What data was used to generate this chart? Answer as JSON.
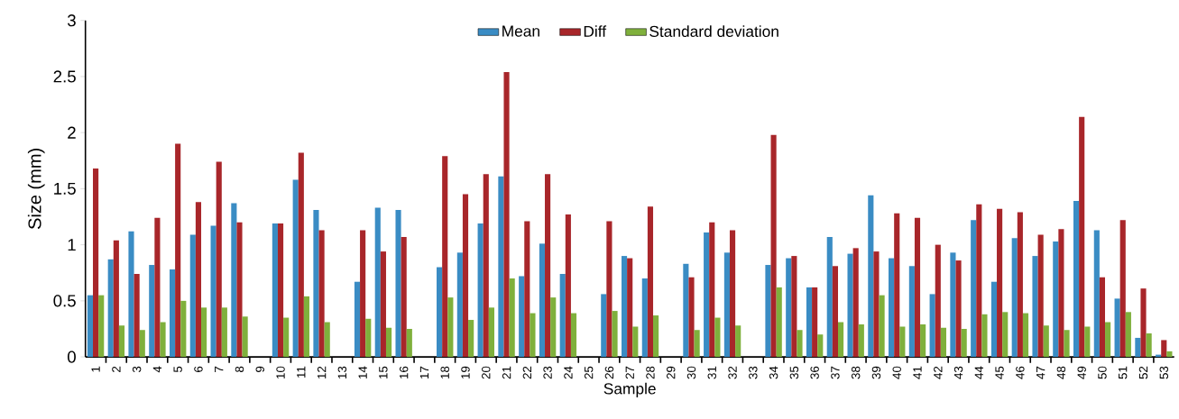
{
  "chart_data": {
    "type": "bar",
    "xlabel": "Sample",
    "ylabel": "Size (mm)",
    "categories": [
      "1",
      "2",
      "3",
      "4",
      "5",
      "6",
      "7",
      "8",
      "9",
      "10",
      "11",
      "12",
      "13",
      "14",
      "15",
      "16",
      "17",
      "18",
      "19",
      "20",
      "21",
      "22",
      "23",
      "24",
      "25",
      "26",
      "27",
      "28",
      "29",
      "30",
      "31",
      "32",
      "33",
      "34",
      "35",
      "36",
      "37",
      "38",
      "39",
      "40",
      "41",
      "42",
      "43",
      "44",
      "45",
      "46",
      "47",
      "48",
      "49",
      "50",
      "51",
      "52",
      "53"
    ],
    "series": [
      {
        "name": "Mean",
        "color": "#3a8cc4",
        "values": [
          0.55,
          0.87,
          1.12,
          0.82,
          0.78,
          1.09,
          1.17,
          1.37,
          null,
          1.19,
          1.58,
          1.31,
          null,
          0.67,
          1.33,
          1.31,
          null,
          0.8,
          0.93,
          1.19,
          1.61,
          0.72,
          1.01,
          0.74,
          null,
          0.56,
          0.9,
          0.7,
          null,
          0.83,
          1.11,
          0.93,
          null,
          0.82,
          0.88,
          0.62,
          1.07,
          0.92,
          1.44,
          0.88,
          0.81,
          0.56,
          0.93,
          1.22,
          0.67,
          1.06,
          0.9,
          1.03,
          1.39,
          1.13,
          0.52,
          0.17,
          0.02
        ]
      },
      {
        "name": "Diff",
        "color": "#a8262a",
        "values": [
          1.68,
          1.04,
          0.74,
          1.24,
          1.9,
          1.38,
          1.74,
          1.2,
          null,
          1.19,
          1.82,
          1.13,
          null,
          1.13,
          0.94,
          1.07,
          null,
          1.79,
          1.45,
          1.63,
          2.54,
          1.21,
          1.63,
          1.27,
          null,
          1.21,
          0.88,
          1.34,
          null,
          0.71,
          1.2,
          1.13,
          null,
          1.98,
          0.9,
          0.62,
          0.81,
          0.97,
          0.94,
          1.28,
          1.24,
          1.0,
          0.86,
          1.36,
          1.32,
          1.29,
          1.09,
          1.14,
          2.14,
          0.71,
          1.22,
          0.61,
          0.15
        ]
      },
      {
        "name": "Standard deviation",
        "color": "#7fb03c",
        "values": [
          0.55,
          0.28,
          0.24,
          0.31,
          0.5,
          0.44,
          0.44,
          0.36,
          null,
          0.35,
          0.54,
          0.31,
          null,
          0.34,
          0.26,
          0.25,
          null,
          0.53,
          0.33,
          0.44,
          0.7,
          0.39,
          0.53,
          0.39,
          null,
          0.41,
          0.27,
          0.37,
          null,
          0.24,
          0.35,
          0.28,
          null,
          0.62,
          0.24,
          0.2,
          0.31,
          0.29,
          0.55,
          0.27,
          0.29,
          0.26,
          0.25,
          0.38,
          0.4,
          0.39,
          0.28,
          0.24,
          0.27,
          0.31,
          0.4,
          0.21,
          0.05
        ]
      }
    ],
    "ylim": [
      0,
      3
    ],
    "yticks": [
      0,
      0.5,
      1,
      1.5,
      2,
      2.5,
      3
    ],
    "legend": "top",
    "grid": false
  }
}
